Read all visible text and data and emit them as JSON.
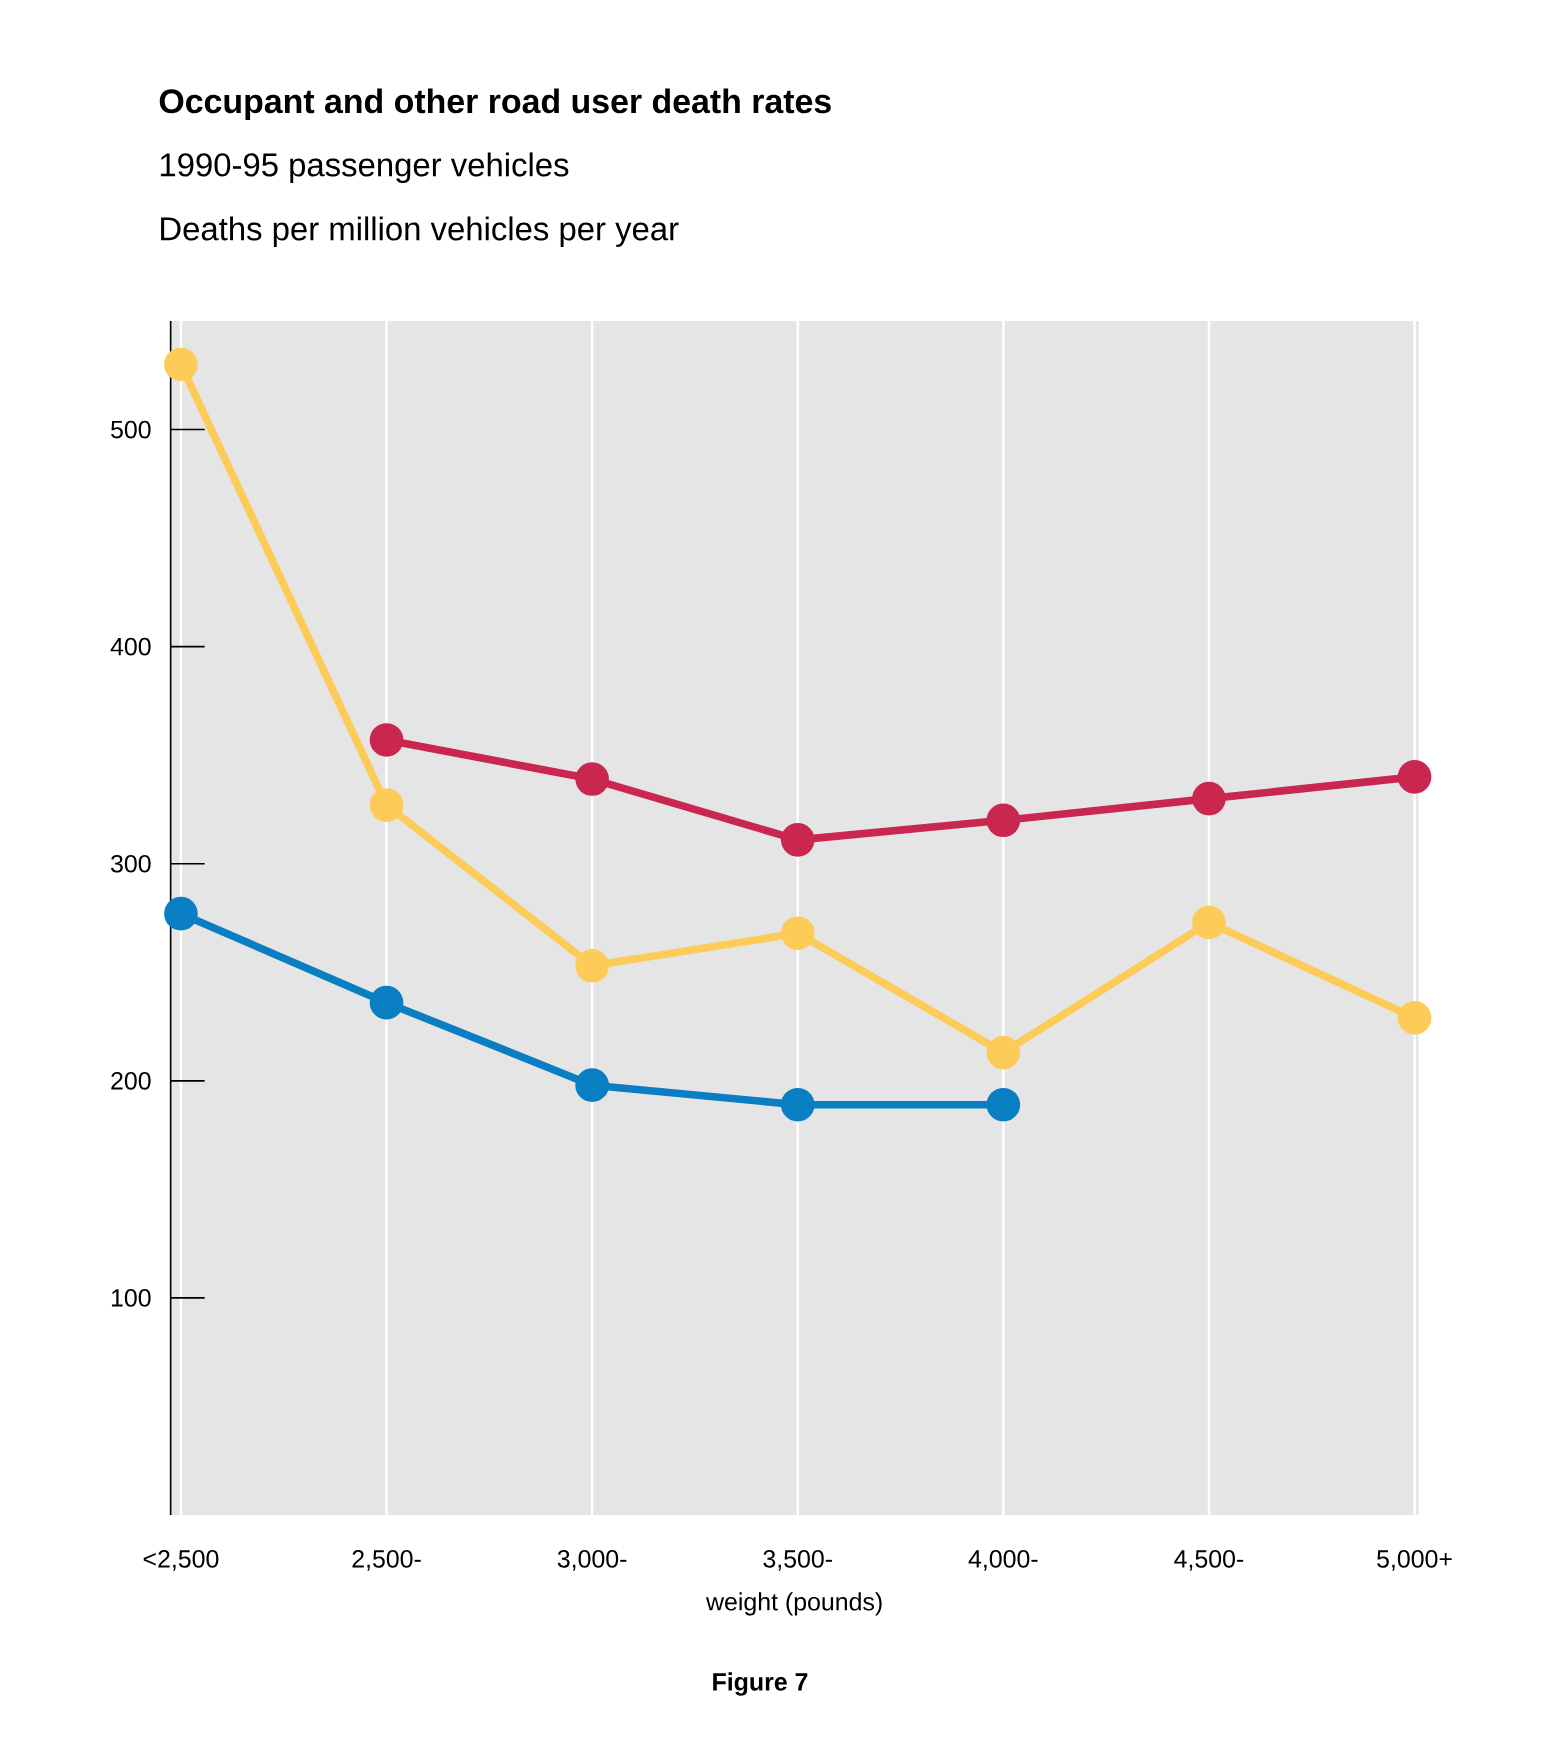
{
  "chart_data": {
    "type": "line",
    "title": "Occupant and other road user death rates",
    "subtitle": "1990-95 passenger vehicles",
    "ylabel": "Deaths per million vehicles per year",
    "xlabel": "weight (pounds)",
    "annotations": [
      "Figure 7"
    ],
    "categories": [
      "<2,500",
      "2,500-",
      "3,000-",
      "3,500-",
      "4,000-",
      "4,500-",
      "5,000+"
    ],
    "series": [
      {
        "color": "#fdcb58",
        "values": [
          530,
          327,
          253,
          268,
          213,
          273,
          229
        ]
      },
      {
        "color": "#c9274f",
        "values": [
          null,
          357,
          339,
          311,
          320,
          330,
          340
        ]
      },
      {
        "color": "#0a7ec2",
        "values": [
          277,
          236,
          198,
          189,
          189,
          null,
          null
        ]
      }
    ],
    "ylim": [
      0,
      550
    ],
    "yticks": [
      100,
      200,
      300,
      400,
      500
    ],
    "grid": "x",
    "marker": "circle",
    "line_style": "solid"
  }
}
